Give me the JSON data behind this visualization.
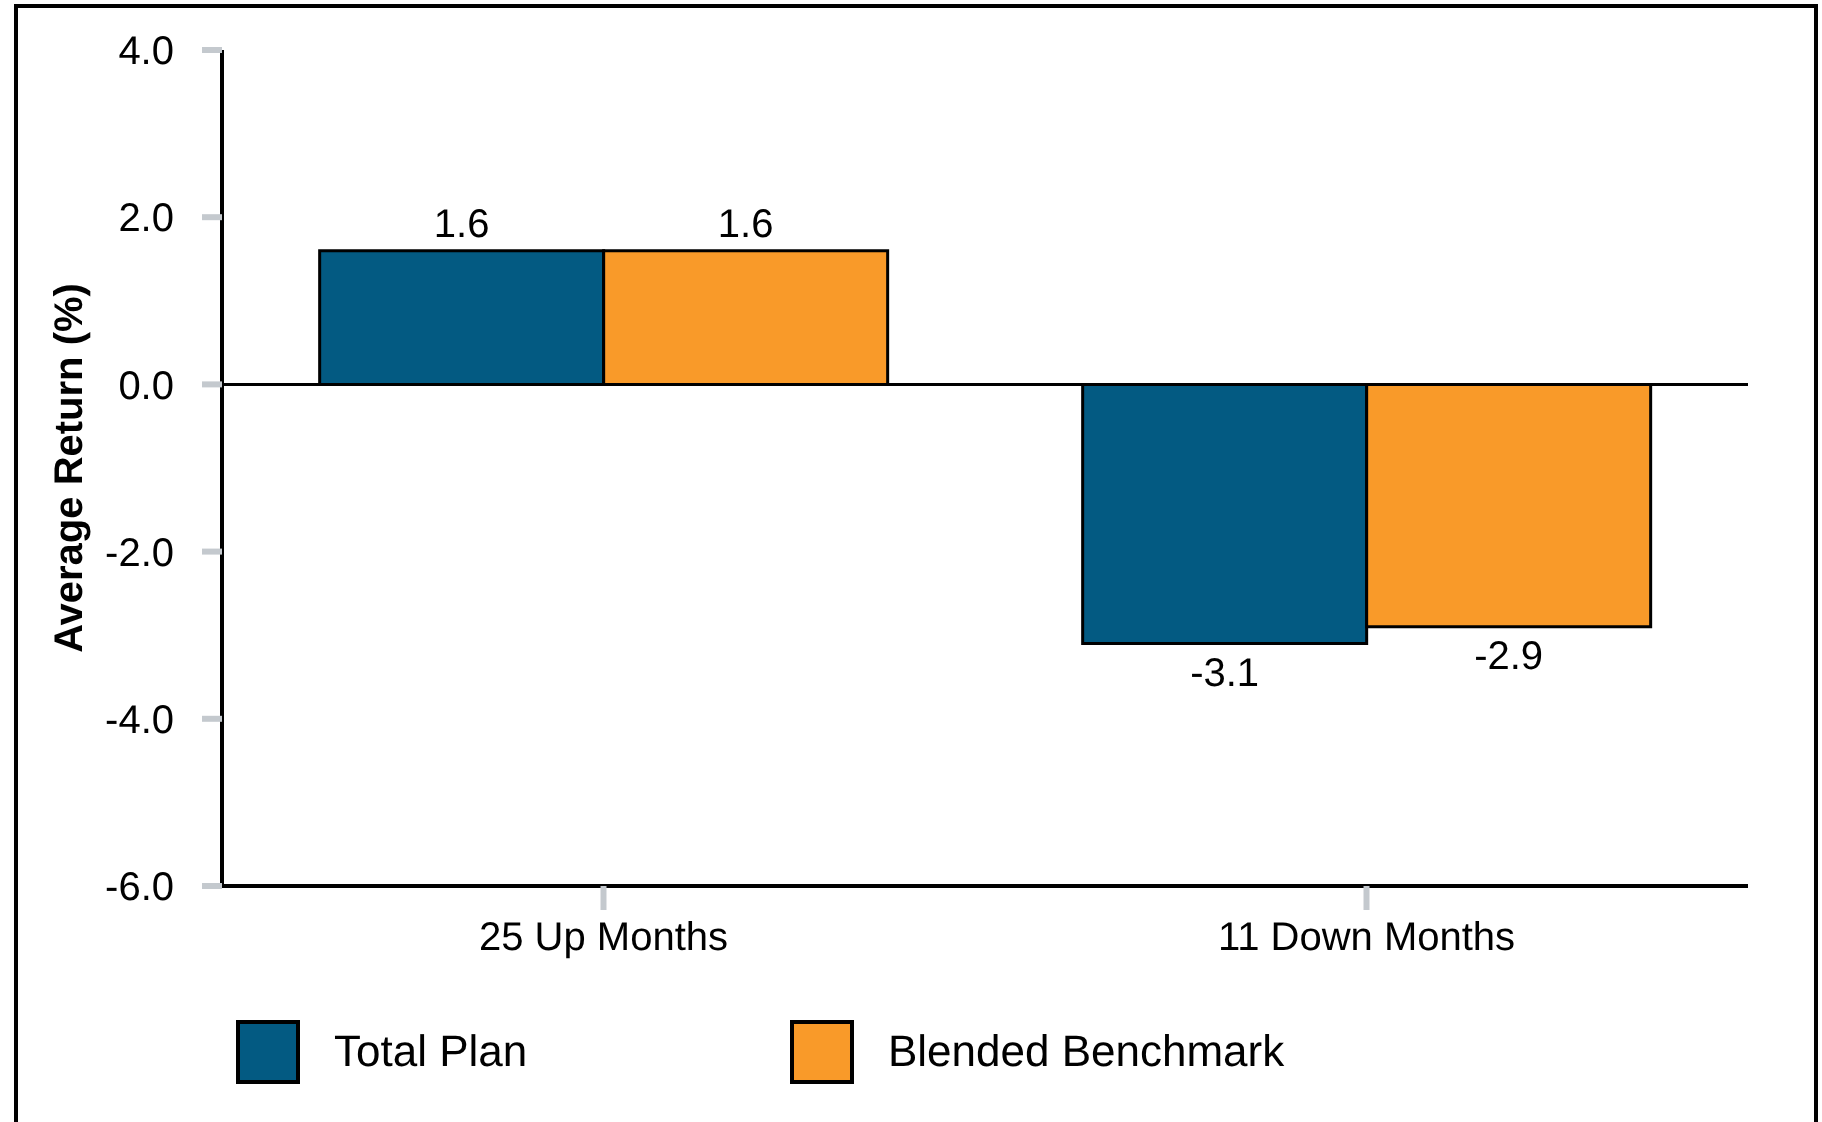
{
  "chart_data": {
    "type": "bar",
    "ylabel": "Average Return (%)",
    "categories": [
      "25 Up Months",
      "11 Down Months"
    ],
    "series": [
      {
        "name": "Total Plan",
        "color": "#035a82",
        "values": [
          1.6,
          -3.1
        ]
      },
      {
        "name": "Blended Benchmark",
        "color": "#f99a29",
        "values": [
          1.6,
          -2.9
        ]
      }
    ],
    "ylim": [
      -6,
      4
    ],
    "yticks": [
      {
        "value": -6,
        "label": "-6.0"
      },
      {
        "value": -4,
        "label": "-4.0"
      },
      {
        "value": -2,
        "label": "-2.0"
      },
      {
        "value": 0,
        "label": "0.0"
      },
      {
        "value": 2,
        "label": "2.0"
      },
      {
        "value": 4,
        "label": "4.0"
      }
    ],
    "ref_lines": [
      {
        "axis": "y",
        "value": 0,
        "color": "#000000"
      }
    ],
    "data_labels": true,
    "legend": "bottom"
  }
}
